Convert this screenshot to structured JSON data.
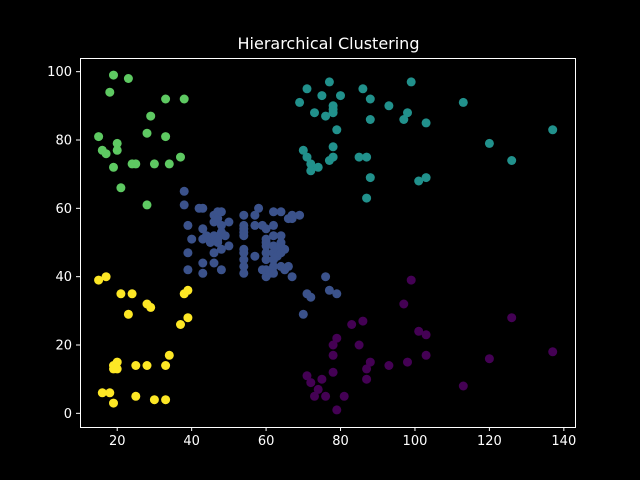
{
  "chart_data": {
    "type": "scatter",
    "title": "Hierarchical Clustering",
    "xlabel": "",
    "ylabel": "",
    "xlim": [
      10,
      143
    ],
    "ylim": [
      -4,
      104
    ],
    "xticks": [
      20,
      40,
      60,
      80,
      100,
      120,
      140
    ],
    "yticks": [
      0,
      20,
      40,
      60,
      80,
      100
    ],
    "grid": false,
    "background": "#000000",
    "series": [
      {
        "cluster": 0,
        "color": "#440154",
        "points": [
          [
            71,
            11
          ],
          [
            72,
            9
          ],
          [
            73,
            5
          ],
          [
            74,
            7
          ],
          [
            75,
            10
          ],
          [
            76,
            5
          ],
          [
            78,
            20
          ],
          [
            78,
            17
          ],
          [
            78,
            12
          ],
          [
            79,
            1
          ],
          [
            79,
            22
          ],
          [
            81,
            5
          ],
          [
            83,
            26
          ],
          [
            85,
            20
          ],
          [
            86,
            27
          ],
          [
            87,
            13
          ],
          [
            87,
            10
          ],
          [
            88,
            15
          ],
          [
            93,
            14
          ],
          [
            97,
            32
          ],
          [
            98,
            15
          ],
          [
            99,
            39
          ],
          [
            101,
            24
          ],
          [
            103,
            17
          ],
          [
            103,
            23
          ],
          [
            113,
            8
          ],
          [
            120,
            16
          ],
          [
            126,
            28
          ],
          [
            137,
            18
          ]
        ]
      },
      {
        "cluster": 1,
        "color": "#3b528b",
        "points": [
          [
            38,
            65
          ],
          [
            38,
            61
          ],
          [
            39,
            55
          ],
          [
            39,
            47
          ],
          [
            39,
            42
          ],
          [
            40,
            51
          ],
          [
            42,
            60
          ],
          [
            43,
            60
          ],
          [
            43,
            54
          ],
          [
            43,
            51
          ],
          [
            43,
            44
          ],
          [
            43,
            41
          ],
          [
            44,
            52
          ],
          [
            45,
            50
          ],
          [
            46,
            58
          ],
          [
            46,
            56
          ],
          [
            46,
            52
          ],
          [
            46,
            47
          ],
          [
            46,
            44
          ],
          [
            47,
            59
          ],
          [
            47,
            57
          ],
          [
            47,
            51
          ],
          [
            47,
            50
          ],
          [
            48,
            59
          ],
          [
            48,
            55
          ],
          [
            48,
            53
          ],
          [
            48,
            48
          ],
          [
            48,
            42
          ],
          [
            49,
            52
          ],
          [
            50,
            49
          ],
          [
            50,
            56
          ],
          [
            54,
            58
          ],
          [
            54,
            55
          ],
          [
            54,
            54
          ],
          [
            54,
            53
          ],
          [
            54,
            52
          ],
          [
            54,
            48
          ],
          [
            54,
            47
          ],
          [
            54,
            45
          ],
          [
            54,
            43
          ],
          [
            54,
            41
          ],
          [
            57,
            58
          ],
          [
            57,
            55
          ],
          [
            57,
            46
          ],
          [
            58,
            60
          ],
          [
            59,
            55
          ],
          [
            59,
            42
          ],
          [
            60,
            54
          ],
          [
            60,
            51
          ],
          [
            60,
            50
          ],
          [
            60,
            49
          ],
          [
            60,
            47
          ],
          [
            60,
            45
          ],
          [
            60,
            42
          ],
          [
            60,
            40
          ],
          [
            61,
            41
          ],
          [
            62,
            59
          ],
          [
            62,
            55
          ],
          [
            62,
            52
          ],
          [
            62,
            49
          ],
          [
            62,
            47
          ],
          [
            62,
            45
          ],
          [
            62,
            43
          ],
          [
            62,
            41
          ],
          [
            63,
            48
          ],
          [
            63,
            46
          ],
          [
            64,
            59
          ],
          [
            64,
            52
          ],
          [
            64,
            50
          ],
          [
            64,
            49
          ],
          [
            64,
            47
          ],
          [
            64,
            43
          ],
          [
            65,
            48
          ],
          [
            65,
            42
          ],
          [
            66,
            57
          ],
          [
            66,
            43
          ],
          [
            67,
            58
          ],
          [
            67,
            57
          ],
          [
            67,
            40
          ],
          [
            69,
            58
          ],
          [
            70,
            29
          ],
          [
            71,
            35
          ],
          [
            72,
            34
          ],
          [
            76,
            40
          ],
          [
            77,
            36
          ],
          [
            79,
            35
          ]
        ]
      },
      {
        "cluster": 2,
        "color": "#21918c",
        "points": [
          [
            69,
            91
          ],
          [
            70,
            77
          ],
          [
            71,
            75
          ],
          [
            71,
            95
          ],
          [
            72,
            71
          ],
          [
            72,
            73
          ],
          [
            73,
            88
          ],
          [
            74,
            72
          ],
          [
            75,
            93
          ],
          [
            76,
            87
          ],
          [
            77,
            97
          ],
          [
            77,
            74
          ],
          [
            78,
            90
          ],
          [
            78,
            89
          ],
          [
            78,
            88
          ],
          [
            78,
            78
          ],
          [
            78,
            75
          ],
          [
            79,
            83
          ],
          [
            80,
            93
          ],
          [
            85,
            75
          ],
          [
            86,
            95
          ],
          [
            87,
            75
          ],
          [
            87,
            63
          ],
          [
            88,
            92
          ],
          [
            88,
            69
          ],
          [
            88,
            86
          ],
          [
            93,
            90
          ],
          [
            97,
            86
          ],
          [
            98,
            88
          ],
          [
            99,
            97
          ],
          [
            101,
            68
          ],
          [
            103,
            69
          ],
          [
            103,
            85
          ],
          [
            113,
            91
          ],
          [
            120,
            79
          ],
          [
            126,
            74
          ],
          [
            137,
            83
          ]
        ]
      },
      {
        "cluster": 3,
        "color": "#5ec962",
        "points": [
          [
            15,
            81
          ],
          [
            16,
            77
          ],
          [
            17,
            76
          ],
          [
            18,
            94
          ],
          [
            19,
            99
          ],
          [
            19,
            72
          ],
          [
            20,
            79
          ],
          [
            20,
            77
          ],
          [
            21,
            66
          ],
          [
            23,
            98
          ],
          [
            24,
            73
          ],
          [
            25,
            73
          ],
          [
            28,
            82
          ],
          [
            28,
            61
          ],
          [
            29,
            87
          ],
          [
            30,
            73
          ],
          [
            33,
            92
          ],
          [
            33,
            81
          ],
          [
            34,
            73
          ],
          [
            37,
            75
          ],
          [
            38,
            92
          ]
        ]
      },
      {
        "cluster": 4,
        "color": "#fde725",
        "points": [
          [
            15,
            39
          ],
          [
            16,
            6
          ],
          [
            17,
            40
          ],
          [
            18,
            6
          ],
          [
            19,
            3
          ],
          [
            19,
            14
          ],
          [
            19,
            13
          ],
          [
            20,
            15
          ],
          [
            20,
            13
          ],
          [
            21,
            35
          ],
          [
            23,
            29
          ],
          [
            24,
            35
          ],
          [
            25,
            5
          ],
          [
            25,
            14
          ],
          [
            28,
            32
          ],
          [
            28,
            14
          ],
          [
            29,
            31
          ],
          [
            30,
            4
          ],
          [
            33,
            4
          ],
          [
            33,
            14
          ],
          [
            34,
            17
          ],
          [
            37,
            26
          ],
          [
            38,
            35
          ],
          [
            39,
            36
          ],
          [
            39,
            28
          ]
        ]
      }
    ]
  }
}
